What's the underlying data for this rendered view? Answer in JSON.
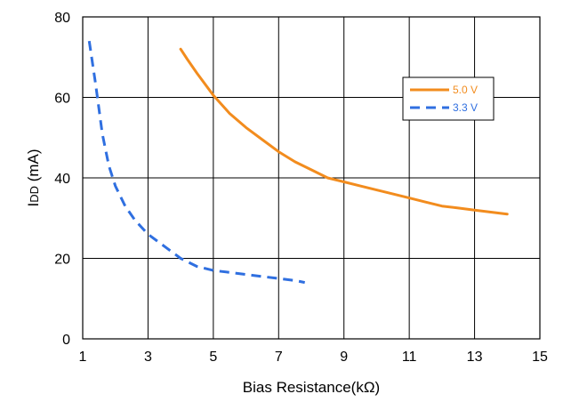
{
  "chart_data": {
    "type": "line",
    "title": "",
    "xlabel": "Bias Resistance(kΩ)",
    "ylabel": {
      "main": "I",
      "sub": "DD",
      "unit": " (mA)"
    },
    "xlim": [
      1,
      15
    ],
    "ylim": [
      0,
      80
    ],
    "x_ticks": [
      "1",
      "3",
      "5",
      "7",
      "9",
      "11",
      "13",
      "15"
    ],
    "y_ticks": [
      "0",
      "20",
      "40",
      "60",
      "80"
    ],
    "grid": true,
    "legend_position": "top-right",
    "series": [
      {
        "name": "5.0 V",
        "color": "#F28C1E",
        "line_style": "solid",
        "x": [
          4.0,
          4.2,
          4.5,
          5.0,
          5.5,
          6.0,
          6.5,
          7.0,
          7.5,
          8.0,
          8.5,
          9.0,
          9.5,
          10.0,
          10.5,
          11.0,
          11.5,
          12.0,
          12.5,
          13.0,
          13.5,
          14.0
        ],
        "y": [
          72,
          69.5,
          66,
          60.5,
          56,
          52.5,
          49.5,
          46.5,
          44,
          42,
          40,
          39,
          38,
          37,
          36,
          35,
          34,
          33,
          32.5,
          32,
          31.5,
          31
        ]
      },
      {
        "name": "3.3 V",
        "color": "#2F6FE0",
        "line_style": "dashed",
        "x": [
          1.2,
          1.4,
          1.6,
          1.8,
          2.0,
          2.3,
          2.6,
          3.0,
          3.5,
          4.0,
          4.5,
          5.0,
          5.5,
          6.0,
          6.5,
          7.0,
          7.5,
          7.8
        ],
        "y": [
          74,
          63,
          51,
          43,
          38,
          33,
          29.5,
          26,
          23,
          20,
          18,
          17,
          16.5,
          16,
          15.5,
          15,
          14.5,
          14
        ]
      }
    ]
  }
}
